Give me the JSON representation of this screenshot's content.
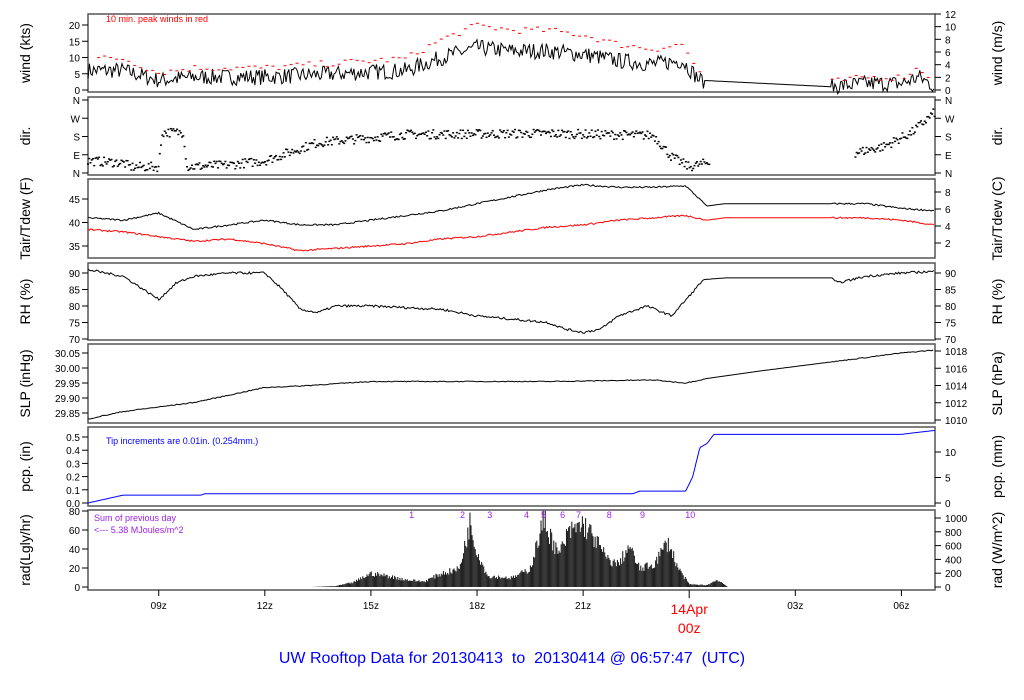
{
  "title": "UW Rooftop Data for 20130413  to  20130414 @ 06:57:47  (UTC)",
  "chart_data": {
    "type": "line",
    "x_unit": "hours since 2013-04-13 00z",
    "xlim": [
      7,
      30.95
    ],
    "x_ticks": [
      {
        "x": 9,
        "label": "09z"
      },
      {
        "x": 12,
        "label": "12z"
      },
      {
        "x": 15,
        "label": "15z"
      },
      {
        "x": 18,
        "label": "18z"
      },
      {
        "x": 21,
        "label": "21z"
      },
      {
        "x": 27,
        "label": "03z"
      },
      {
        "x": 30,
        "label": "06z"
      }
    ],
    "date_tick": {
      "x": 24,
      "label1": "14Apr",
      "label2": "00z",
      "color": "#ff0000"
    },
    "panels": {
      "wind": {
        "ylabel": "wind (kts)",
        "ylabel_right": "wind (m/s)",
        "ticks": [
          "0",
          "5",
          "10",
          "15",
          "20"
        ],
        "ticks_right": [
          "0",
          "2",
          "4",
          "6",
          "8",
          "10",
          "12"
        ],
        "annotation": "10 min. peak winds in red",
        "peak_color": "#ff0000",
        "x": [
          7,
          8,
          9,
          10,
          11,
          12,
          13,
          14,
          15,
          16,
          17,
          18,
          19,
          20,
          21,
          22,
          23,
          23.8,
          24.3,
          28,
          29,
          30,
          30.5,
          30.95
        ],
        "y": [
          6,
          6,
          3,
          4,
          4,
          4,
          4.5,
          5,
          5.5,
          6,
          10,
          13,
          12,
          12,
          11,
          9,
          8,
          9,
          3,
          1,
          2,
          2,
          4,
          1
        ]
      },
      "dir": {
        "ylabel": "dir.",
        "ylabel_right": "dir.",
        "ticks": [
          "N",
          "E",
          "S",
          "W",
          "N"
        ],
        "x": [
          7,
          8,
          8.2,
          9,
          9.1,
          9.7,
          9.8,
          11,
          12,
          13.5,
          16,
          20,
          23,
          23.5,
          24,
          24.5,
          28.7,
          29.5,
          30.3,
          30.95
        ],
        "y": [
          60,
          50,
          30,
          30,
          200,
          200,
          30,
          40,
          60,
          150,
          190,
          195,
          185,
          80,
          30,
          50,
          100,
          130,
          200,
          300
        ]
      },
      "temp": {
        "ylabel": "Tair/Tdew (F)",
        "ylabel_right": "Tair/Tdew (C)",
        "ticks": [
          "35",
          "40",
          "45"
        ],
        "ticks_right": [
          "2",
          "4",
          "6",
          "8"
        ],
        "tair_color": "#000000",
        "tdew_color": "#ff0000",
        "x": [
          7,
          8,
          9,
          10,
          11,
          12,
          13,
          14,
          15,
          16,
          17,
          18,
          19,
          20,
          21,
          22,
          23,
          23.9,
          24.5,
          25,
          28,
          29,
          30,
          30.95
        ],
        "tair": [
          41,
          40.5,
          42,
          38.5,
          39.5,
          40.5,
          39.5,
          39.5,
          40.5,
          41.5,
          42.5,
          44,
          45.5,
          47,
          48,
          47.5,
          47.5,
          47.8,
          43.5,
          44,
          44,
          44,
          43,
          42.5
        ],
        "tdew": [
          38.5,
          38,
          37,
          36,
          36.5,
          35.5,
          34,
          34.5,
          35,
          35.5,
          36.5,
          37,
          38,
          39,
          39.5,
          40.5,
          41,
          41.5,
          40.5,
          41,
          41,
          41,
          40.5,
          39.5
        ]
      },
      "rh": {
        "ylabel": "RH (%)",
        "ylabel_right": "RH (%)",
        "ticks": [
          "70",
          "75",
          "80",
          "85",
          "90"
        ],
        "x": [
          7,
          8,
          9,
          9.5,
          10,
          11,
          12,
          12.5,
          13,
          13.5,
          14,
          15,
          16,
          17,
          18,
          19,
          20,
          20.5,
          21,
          21.5,
          22,
          22.8,
          23.5,
          24,
          24.4,
          25,
          28,
          28.2,
          29,
          30,
          30.95
        ],
        "y": [
          91,
          89,
          82,
          87,
          89,
          90,
          90,
          85,
          79,
          78,
          80,
          80,
          79.5,
          79,
          77,
          76,
          75,
          73,
          72,
          73,
          77,
          80,
          77,
          83,
          88,
          88.5,
          88.5,
          87,
          89,
          90,
          90.5
        ]
      },
      "slp": {
        "ylabel": "SLP (inHg)",
        "ylabel_right": "SLP (hPa)",
        "ticks": [
          "29.85",
          "29.90",
          "29.95",
          "30.00",
          "30.05"
        ],
        "ticks_right": [
          "1010",
          "1012",
          "1014",
          "1016",
          "1018"
        ],
        "x": [
          7,
          8,
          9,
          10,
          11,
          12,
          13,
          15,
          18,
          20,
          23,
          23.9,
          24.5,
          26,
          28,
          30,
          30.95
        ],
        "y": [
          29.83,
          29.855,
          29.87,
          29.885,
          29.91,
          29.935,
          29.94,
          29.955,
          29.955,
          29.955,
          29.96,
          29.95,
          29.965,
          29.99,
          30.02,
          30.05,
          30.06
        ]
      },
      "pcp": {
        "ylabel": "pcp. (in)",
        "ylabel_right": "pcp. (mm)",
        "ticks": [
          "0.0",
          "0.1",
          "0.2",
          "0.3",
          "0.4",
          "0.5"
        ],
        "ticks_right": [
          "0",
          "5",
          "10"
        ],
        "annotation": "Tip increments are 0.01in. (0.254mm.)",
        "color": "#0000ff",
        "x": [
          7,
          7.5,
          8,
          10.2,
          10.3,
          22.4,
          22.6,
          23.9,
          24.1,
          24.3,
          24.5,
          24.7,
          30,
          30.3,
          30.95
        ],
        "y": [
          0,
          0.03,
          0.06,
          0.06,
          0.07,
          0.07,
          0.09,
          0.09,
          0.2,
          0.42,
          0.45,
          0.52,
          0.52,
          0.53,
          0.55
        ]
      },
      "rad": {
        "ylabel": "rad(Lgly/hr)",
        "ylabel_right": "rad (W/m^2)",
        "ticks": [
          "0",
          "20",
          "40",
          "60",
          "80"
        ],
        "ticks_right": [
          "0",
          "200",
          "400",
          "600",
          "800",
          "1000"
        ],
        "note1": "Sum of previous day",
        "note2": "<--- 5.38 MJoules/m^2",
        "note_color": "#a020f0",
        "hour_marks": [
          {
            "x": 16.15,
            "label": "1"
          },
          {
            "x": 17.59,
            "label": "2"
          },
          {
            "x": 18.36,
            "label": "3"
          },
          {
            "x": 19.4,
            "label": "4"
          },
          {
            "x": 19.88,
            "label": "5"
          },
          {
            "x": 20.42,
            "label": "6"
          },
          {
            "x": 20.87,
            "label": "7"
          },
          {
            "x": 21.74,
            "label": "8"
          },
          {
            "x": 22.68,
            "label": "9"
          },
          {
            "x": 24.03,
            "label": "10"
          }
        ],
        "x": [
          7,
          13.3,
          14,
          14.5,
          15,
          15.5,
          16,
          16.5,
          17,
          17.5,
          17.8,
          18,
          18.3,
          19,
          19.5,
          19.9,
          20.3,
          20.6,
          21,
          21.3,
          21.7,
          22,
          22.3,
          22.6,
          23,
          23.4,
          23.7,
          24,
          24.5,
          24.8,
          25.1,
          30.95
        ],
        "y": [
          0,
          0,
          1,
          5,
          15,
          12,
          8,
          6,
          15,
          20,
          70,
          40,
          12,
          10,
          20,
          75,
          35,
          60,
          70,
          55,
          30,
          25,
          45,
          20,
          25,
          50,
          20,
          3,
          2,
          8,
          0,
          0
        ]
      }
    }
  }
}
